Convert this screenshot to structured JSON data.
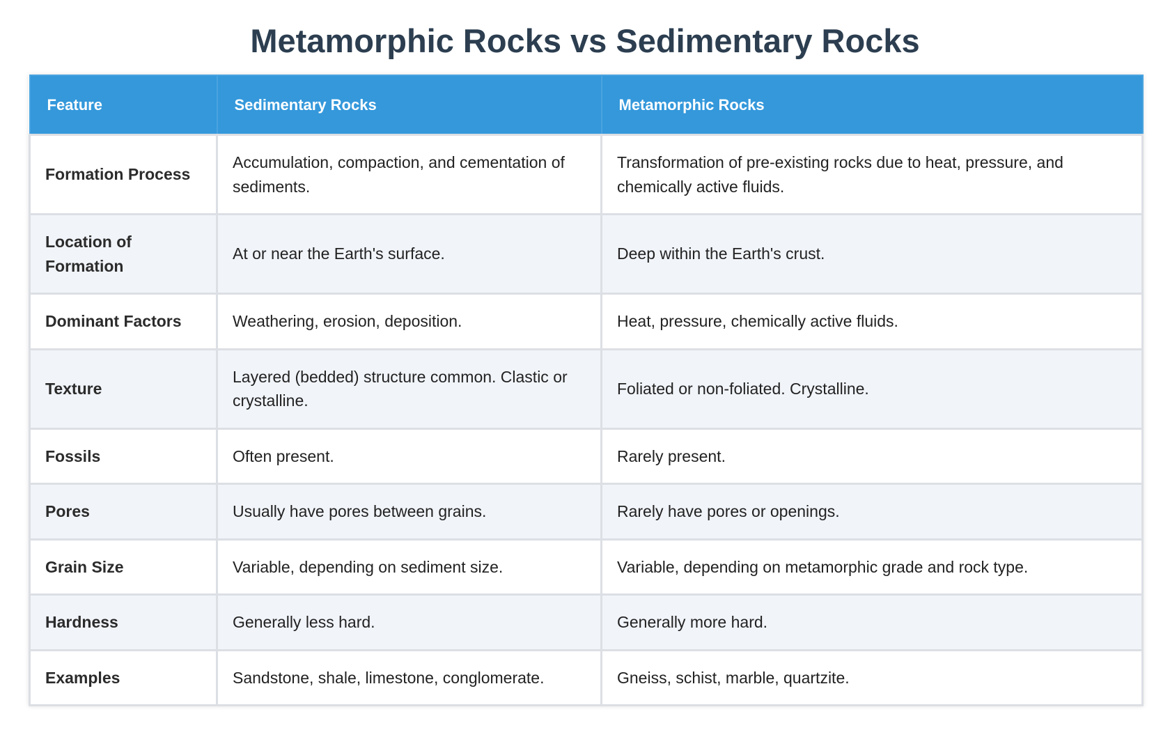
{
  "header": {
    "title": "Metamorphic Rocks vs Sedimentary Rocks"
  },
  "table": {
    "columns": [
      "Feature",
      "Sedimentary Rocks",
      "Metamorphic Rocks"
    ],
    "rows": [
      [
        "Formation Process",
        "Accumulation, compaction, and cementation of sediments.",
        "Transformation of pre-existing rocks due to heat, pressure, and chemically active fluids."
      ],
      [
        "Location of Formation",
        "At or near the Earth's surface.",
        "Deep within the Earth's crust."
      ],
      [
        "Dominant Factors",
        "Weathering, erosion, deposition.",
        "Heat, pressure, chemically active fluids."
      ],
      [
        "Texture",
        "Layered (bedded) structure common. Clastic or crystalline.",
        "Foliated or non-foliated. Crystalline."
      ],
      [
        "Fossils",
        "Often present.",
        "Rarely present."
      ],
      [
        "Pores",
        "Usually have pores between grains.",
        "Rarely have pores or openings."
      ],
      [
        "Grain Size",
        "Variable, depending on sediment size.",
        "Variable, depending on metamorphic grade and rock type."
      ],
      [
        "Hardness",
        "Generally less hard.",
        "Generally more hard."
      ],
      [
        "Examples",
        "Sandstone, shale, limestone, conglomerate.",
        "Gneiss, schist, marble, quartzite."
      ]
    ]
  }
}
